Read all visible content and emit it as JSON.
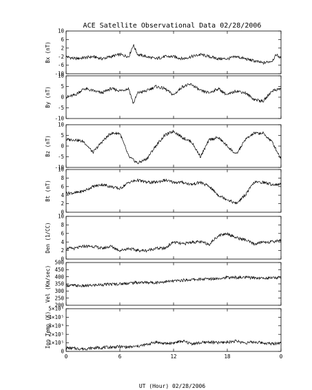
{
  "title": "ACE Satellite Observational Data   02/28/2006",
  "xlabel": "UT (Hour)   02/28/2006",
  "x_ticks": [
    "0",
    "6",
    "12",
    "18",
    "0"
  ],
  "x_range": [
    0,
    24
  ],
  "chart_data": [
    {
      "type": "line",
      "ylabel": "Bx (nT)",
      "ylim": [
        -10,
        10
      ],
      "yticks": [
        "10",
        "6",
        "2",
        "-2",
        "-6",
        "-10"
      ],
      "yticks_values": [
        10,
        6,
        2,
        -2,
        -6,
        -10
      ],
      "x": [
        0,
        1,
        2,
        3,
        4,
        5,
        6,
        7,
        7.5,
        8,
        9,
        10,
        11,
        12,
        13,
        14,
        15,
        16,
        17,
        18,
        19,
        20,
        21,
        22,
        23,
        23.5,
        24
      ],
      "values": [
        -2,
        -3,
        -2.5,
        -2,
        -3,
        -2,
        -1,
        -2,
        3.5,
        -1,
        -2,
        -3,
        -2,
        -2,
        -3,
        -2,
        -1,
        -2,
        -3,
        -3,
        -2,
        -3,
        -4,
        -5,
        -4,
        -1,
        -3
      ]
    },
    {
      "type": "line",
      "ylabel": "By (nT)",
      "ylim": [
        -10,
        10
      ],
      "yticks": [
        "10",
        "5",
        "0",
        "-5",
        "-10"
      ],
      "yticks_values": [
        10,
        5,
        0,
        -5,
        -10
      ],
      "x": [
        0,
        1,
        2,
        3,
        4,
        5,
        6,
        7,
        7.5,
        8,
        9,
        10,
        11,
        12,
        13,
        14,
        15,
        16,
        17,
        18,
        19,
        20,
        21,
        22,
        23,
        24
      ],
      "values": [
        0,
        1,
        4,
        3,
        2,
        4,
        3,
        4,
        -3,
        2,
        3,
        5,
        4,
        1,
        5,
        6,
        3,
        2,
        4,
        1,
        3,
        2,
        -1,
        -2,
        3,
        4
      ]
    },
    {
      "type": "line",
      "ylabel": "Bz (nT)",
      "ylim": [
        -10,
        10
      ],
      "yticks": [
        "10",
        "5",
        "0",
        "-5",
        "-10"
      ],
      "yticks_values": [
        10,
        5,
        0,
        -5,
        -10
      ],
      "x": [
        0,
        1,
        2,
        3,
        4,
        5,
        6,
        7,
        8,
        9,
        10,
        11,
        12,
        13,
        14,
        15,
        16,
        17,
        18,
        19,
        20,
        21,
        22,
        23,
        24
      ],
      "values": [
        3,
        3,
        2,
        -3,
        2,
        6,
        6,
        -5,
        -8,
        -6,
        0,
        5,
        7,
        4,
        2,
        -5,
        3,
        4,
        0,
        -4,
        3,
        6,
        6,
        2,
        -6
      ]
    },
    {
      "type": "line",
      "ylabel": "Bt (nT)",
      "ylim": [
        0,
        10
      ],
      "yticks": [
        "10",
        "8",
        "6",
        "4",
        "2",
        "0"
      ],
      "yticks_values": [
        10,
        8,
        6,
        4,
        2,
        0
      ],
      "x": [
        0,
        1,
        2,
        3,
        4,
        5,
        6,
        7,
        8,
        9,
        10,
        11,
        12,
        13,
        14,
        15,
        16,
        17,
        18,
        19,
        20,
        21,
        22,
        23,
        24
      ],
      "values": [
        4.5,
        4.5,
        5,
        6,
        6.5,
        6,
        5.5,
        7,
        7.5,
        7,
        7,
        7.5,
        7,
        7,
        6.5,
        7,
        6,
        4,
        3,
        2,
        4,
        7,
        7,
        6.5,
        6.5
      ]
    },
    {
      "type": "line",
      "ylabel": "Den (1/CC)",
      "ylim": [
        0,
        10
      ],
      "yticks": [
        "10",
        "8",
        "6",
        "4",
        "2",
        "0"
      ],
      "yticks_values": [
        10,
        8,
        6,
        4,
        2,
        0
      ],
      "x": [
        0,
        1,
        2,
        3,
        4,
        5,
        6,
        7,
        8,
        9,
        10,
        11,
        12,
        13,
        14,
        15,
        16,
        17,
        18,
        19,
        20,
        21,
        22,
        23,
        24
      ],
      "values": [
        2.5,
        2.5,
        3,
        3,
        2.5,
        3,
        2,
        2.5,
        2,
        2,
        2.5,
        2.5,
        4,
        3.5,
        4,
        4,
        3.5,
        5.5,
        6,
        5,
        4.5,
        3.5,
        4,
        4,
        4.5
      ]
    },
    {
      "type": "line",
      "ylabel": "Vel (Km/sec)",
      "ylim": [
        200,
        500
      ],
      "yticks": [
        "500",
        "450",
        "400",
        "350",
        "300",
        "250",
        "200"
      ],
      "yticks_values": [
        500,
        450,
        400,
        350,
        300,
        250,
        200
      ],
      "x": [
        0,
        2,
        4,
        6,
        8,
        10,
        12,
        14,
        16,
        18,
        20,
        22,
        24
      ],
      "values": [
        340,
        335,
        345,
        350,
        360,
        360,
        370,
        380,
        385,
        395,
        395,
        390,
        395
      ]
    },
    {
      "type": "line",
      "ylabel": "Ion Temp (K)",
      "ylim": [
        0,
        500000
      ],
      "yticks": [
        "5×10⁵",
        "4×10⁵",
        "3×10⁵",
        "2×10⁵",
        "1×10⁵",
        "0"
      ],
      "yticks_values": [
        500000,
        400000,
        300000,
        200000,
        100000,
        0
      ],
      "x": [
        0,
        1,
        2,
        3,
        4,
        5,
        6,
        7,
        8,
        9,
        10,
        11,
        12,
        13,
        14,
        15,
        16,
        17,
        18,
        19,
        20,
        21,
        22,
        23,
        24
      ],
      "values": [
        40000,
        35000,
        30000,
        40000,
        45000,
        50000,
        55000,
        50000,
        60000,
        80000,
        110000,
        90000,
        100000,
        120000,
        90000,
        100000,
        110000,
        100000,
        110000,
        120000,
        100000,
        110000,
        100000,
        90000,
        100000
      ]
    }
  ]
}
